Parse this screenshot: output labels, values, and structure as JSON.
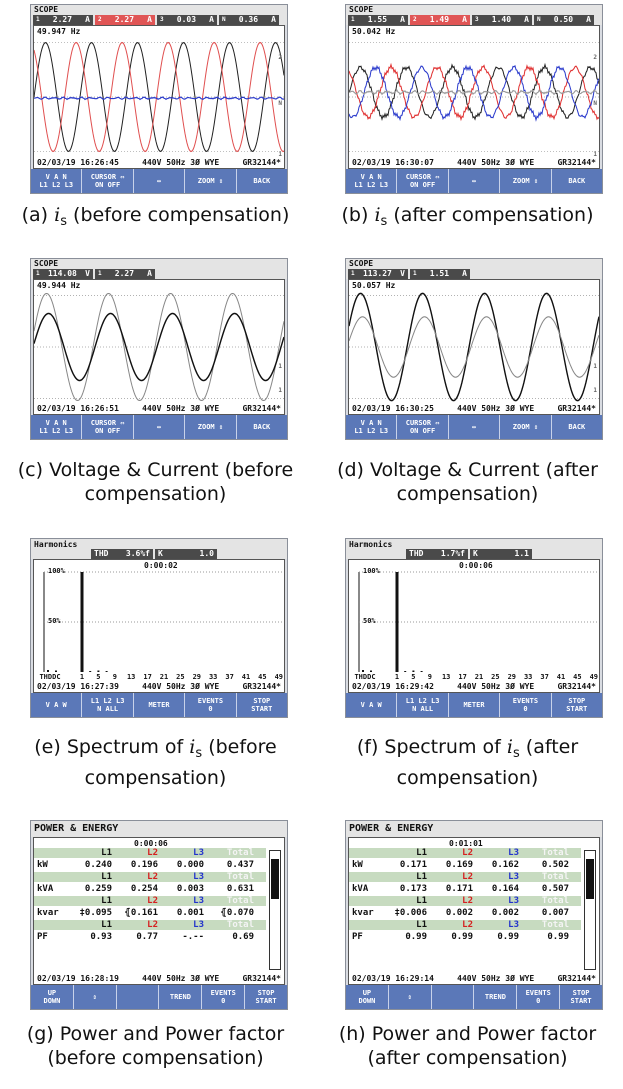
{
  "panels": [
    {
      "kind": "scope",
      "caption": {
        "label": "(a)",
        "symbol": "i",
        "subscript": "s",
        "text": "(before compensation)"
      },
      "screen": {
        "mode": "SCOPE",
        "readouts": [
          {
            "ch": "1",
            "val": "2.27",
            "unit": "A"
          },
          {
            "ch": "2",
            "val": "2.27",
            "unit": "A"
          },
          {
            "ch": "3",
            "val": "0.03",
            "unit": "A"
          },
          {
            "ch": "N",
            "val": "0.36",
            "unit": "A"
          }
        ],
        "frequency": "49.947 Hz",
        "trace_labels": [
          "2",
          "N",
          "1"
        ],
        "date": "02/03/19",
        "time": "16:26:45",
        "config": "440V 50Hz 3Ø WYE",
        "id": "GR32144*",
        "softkeys": [
          [
            "V A N",
            "L1 L2 L3"
          ],
          [
            "CURSOR ⇔",
            "ON OFF"
          ],
          [
            "↔"
          ],
          [
            "ZOOM ⇕"
          ],
          [
            "BACK"
          ]
        ]
      }
    },
    {
      "kind": "scope",
      "caption": {
        "label": "(b)",
        "symbol": "i",
        "subscript": "s",
        "text": "(after compensation)"
      },
      "screen": {
        "mode": "SCOPE",
        "readouts": [
          {
            "ch": "1",
            "val": "1.55",
            "unit": "A"
          },
          {
            "ch": "2",
            "val": "1.49",
            "unit": "A"
          },
          {
            "ch": "3",
            "val": "1.40",
            "unit": "A"
          },
          {
            "ch": "N",
            "val": "0.50",
            "unit": "A"
          }
        ],
        "frequency": "50.042 Hz",
        "trace_labels": [
          "2",
          "N",
          "1"
        ],
        "date": "02/03/19",
        "time": "16:30:07",
        "config": "440V 50Hz 3Ø WYE",
        "id": "GR32144*",
        "softkeys": [
          [
            "V A N",
            "L1 L2 L3"
          ],
          [
            "CURSOR ⇔",
            "ON OFF"
          ],
          [
            "↔"
          ],
          [
            "ZOOM ⇕"
          ],
          [
            "BACK"
          ]
        ]
      }
    },
    {
      "kind": "scope",
      "caption": {
        "label": "(c)",
        "text": "Voltage & Current (before compensation)"
      },
      "screen": {
        "mode": "SCOPE",
        "readouts": [
          {
            "ch": "1",
            "val": "114.08",
            "unit": "V"
          },
          {
            "ch": "1",
            "val": "2.27",
            "unit": "A"
          }
        ],
        "frequency": "49.944 Hz",
        "trace_labels": [
          "1",
          "1"
        ],
        "date": "02/03/19",
        "time": "16:26:51",
        "config": "440V 50Hz 3Ø WYE",
        "id": "GR32144*",
        "softkeys": [
          [
            "V A N",
            "L1 L2 L3"
          ],
          [
            "CURSOR ⇔",
            "ON OFF"
          ],
          [
            "↔"
          ],
          [
            "ZOOM ⇕"
          ],
          [
            "BACK"
          ]
        ]
      }
    },
    {
      "kind": "scope",
      "caption": {
        "label": "(d)",
        "text": "Voltage & Current (after compensation)"
      },
      "screen": {
        "mode": "SCOPE",
        "readouts": [
          {
            "ch": "1",
            "val": "113.27",
            "unit": "V"
          },
          {
            "ch": "1",
            "val": "1.51",
            "unit": "A"
          }
        ],
        "frequency": "50.057 Hz",
        "trace_labels": [
          "1",
          "1"
        ],
        "date": "02/03/19",
        "time": "16:30:25",
        "config": "440V 50Hz 3Ø WYE",
        "id": "GR32144*",
        "softkeys": [
          [
            "V A N",
            "L1 L2 L3"
          ],
          [
            "CURSOR ⇔",
            "ON OFF"
          ],
          [
            "↔"
          ],
          [
            "ZOOM ⇕"
          ],
          [
            "BACK"
          ]
        ]
      }
    },
    {
      "kind": "harmonics",
      "caption": {
        "label": "(e)",
        "pre": "Spectrum of",
        "symbol": "i",
        "subscript": "s",
        "text": "(before compensation)"
      },
      "screen": {
        "mode": "Harmonics",
        "thd_label": "THD",
        "thd": "3.6%f",
        "k_label": "K",
        "k": "1.0",
        "elapsed": "0:00:02",
        "y_labels": [
          "100%",
          "50%"
        ],
        "x_labels": [
          "THDDC",
          "1",
          "5",
          "9",
          "13",
          "17",
          "21",
          "25",
          "29",
          "33",
          "37",
          "41",
          "45",
          "49"
        ],
        "date": "02/03/19",
        "time": "16:27:39",
        "config": "440V 50Hz 3Ø WYE",
        "id": "GR32144*",
        "softkeys": [
          [
            "V A W"
          ],
          [
            "L1 L2 L3",
            "N ALL"
          ],
          [
            "METER"
          ],
          [
            "EVENTS",
            "0"
          ],
          [
            "STOP",
            "START"
          ]
        ]
      }
    },
    {
      "kind": "harmonics",
      "caption": {
        "label": "(f)",
        "pre": "Spectrum of",
        "symbol": "i",
        "subscript": "s",
        "text": "(after compensation)"
      },
      "screen": {
        "mode": "Harmonics",
        "thd_label": "THD",
        "thd": "1.7%f",
        "k_label": "K",
        "k": "1.1",
        "elapsed": "0:00:06",
        "y_labels": [
          "100%",
          "50%"
        ],
        "x_labels": [
          "THDDC",
          "1",
          "5",
          "9",
          "13",
          "17",
          "21",
          "25",
          "29",
          "33",
          "37",
          "41",
          "45",
          "49"
        ],
        "date": "02/03/19",
        "time": "16:29:42",
        "config": "440V 50Hz 3Ø WYE",
        "id": "GR32144*",
        "softkeys": [
          [
            "V A W"
          ],
          [
            "L1 L2 L3",
            "N ALL"
          ],
          [
            "METER"
          ],
          [
            "EVENTS",
            "0"
          ],
          [
            "STOP",
            "START"
          ]
        ]
      }
    },
    {
      "kind": "power",
      "caption": {
        "label": "(g)",
        "text": "Power and Power factor (before compensation)"
      },
      "screen": {
        "mode": "POWER & ENERGY",
        "elapsed": "0:00:06",
        "columns": [
          "L1",
          "L2",
          "L3",
          "Total"
        ],
        "rows": [
          {
            "name": "kW",
            "values": [
              "0.240",
              "0.196",
              "0.000",
              "0.437"
            ]
          },
          {
            "name": "kVA",
            "values": [
              "0.259",
              "0.254",
              "0.003",
              "0.631"
            ]
          },
          {
            "name": "kvar",
            "values": [
              "‡0.095",
              "⦃0.161",
              "0.001",
              "⦃0.070"
            ]
          },
          {
            "name": "PF",
            "values": [
              "0.93",
              "0.77",
              "-.--",
              "0.69"
            ]
          }
        ],
        "date": "02/03/19",
        "time": "16:28:19",
        "config": "440V 50Hz 3Ø WYE",
        "id": "GR32144*",
        "softkeys": [
          [
            "UP",
            "DOWN"
          ],
          [
            "⇕"
          ],
          [
            "TREND"
          ],
          [
            "EVENTS",
            "0"
          ],
          [
            "STOP",
            "START"
          ]
        ]
      }
    },
    {
      "kind": "power",
      "caption": {
        "label": "(h)",
        "text": "Power and Power factor (after compensation)"
      },
      "screen": {
        "mode": "POWER & ENERGY",
        "elapsed": "0:01:01",
        "columns": [
          "L1",
          "L2",
          "L3",
          "Total"
        ],
        "rows": [
          {
            "name": "kW",
            "values": [
              "0.171",
              "0.169",
              "0.162",
              "0.502"
            ]
          },
          {
            "name": "kVA",
            "values": [
              "0.173",
              "0.171",
              "0.164",
              "0.507"
            ]
          },
          {
            "name": "kvar",
            "values": [
              "‡0.006",
              "0.002",
              "0.002",
              "0.007"
            ]
          },
          {
            "name": "PF",
            "values": [
              "0.99",
              "0.99",
              "0.99",
              "0.99"
            ]
          }
        ],
        "date": "02/03/19",
        "time": "16:29:14",
        "config": "440V 50Hz 3Ø WYE",
        "id": "GR32144*",
        "softkeys": [
          [
            "UP",
            "DOWN"
          ],
          [
            "⇕"
          ],
          [
            "TREND"
          ],
          [
            "EVENTS",
            "0"
          ],
          [
            "STOP",
            "START"
          ]
        ]
      }
    }
  ]
}
